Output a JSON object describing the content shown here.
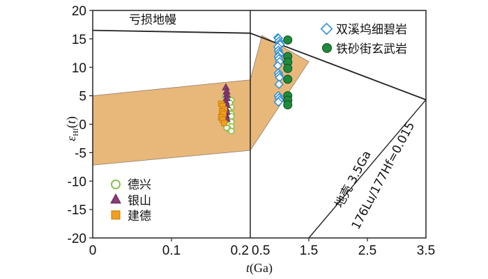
{
  "chart_data": {
    "type": "scatter",
    "xlabel": "t(Ga)",
    "ylabel": "εHf(t)",
    "ylim": [
      -20,
      20
    ],
    "yticks": [
      "20",
      "15",
      "10",
      "5",
      "0",
      "-5",
      "-10",
      "-15",
      "-20"
    ],
    "panels": [
      {
        "xlim": [
          0,
          0.2
        ],
        "xticks": [
          "0",
          "0.1",
          "0.2"
        ]
      },
      {
        "xlim": [
          0.5,
          3.5
        ],
        "xticks": [
          "0.5",
          "1.5",
          "2.5",
          "3.5"
        ]
      }
    ],
    "annotations": {
      "depleted_mantle": "亏损地幔",
      "crust_line_1": "地壳 3.5Ga",
      "crust_line_2": "176Lu/177Hf=0.015"
    },
    "colors": {
      "band": "#e8b87a",
      "shuangxiwu": "#2f8fd6",
      "tieshajie": "#1f8a3c",
      "dexing": "#7cbf3a",
      "yinshan": "#8b3a7a",
      "jiande": "#f0a020"
    },
    "series": [
      {
        "name": "双溪坞细碧岩",
        "marker": "diamond-open",
        "panel": 2,
        "x": [
          0.97,
          0.98,
          0.99,
          1.0,
          1.01,
          0.97,
          0.98,
          0.99,
          1.0,
          0.98,
          0.99,
          1.0,
          0.97,
          0.98,
          0.99,
          1.0,
          0.98,
          0.99,
          1.0,
          0.98,
          0.99
        ],
        "y": [
          15.2,
          15.1,
          14.6,
          14.2,
          14.0,
          13.6,
          13.0,
          12.6,
          12.3,
          11.9,
          11.5,
          11.0,
          10.3,
          9.0,
          8.6,
          8.2,
          5.0,
          4.6,
          4.2,
          3.9,
          7.0
        ]
      },
      {
        "name": "铁砂街玄武岩",
        "marker": "circle",
        "panel": 2,
        "x": [
          1.14,
          1.14,
          1.14,
          1.14,
          1.14,
          1.14,
          1.14,
          1.14
        ],
        "y": [
          14.8,
          11.9,
          10.9,
          9.8,
          7.9,
          5.0,
          4.2,
          3.4
        ]
      },
      {
        "name": "德兴",
        "marker": "circle-open",
        "panel": 1,
        "x": [
          0.168,
          0.172,
          0.176,
          0.168,
          0.172,
          0.176,
          0.168,
          0.172,
          0.176,
          0.168,
          0.172,
          0.176,
          0.168,
          0.172,
          0.176,
          0.172,
          0.176,
          0.172,
          0.176,
          0.174,
          0.17,
          0.166
        ],
        "y": [
          4.8,
          4.6,
          4.2,
          3.4,
          3.2,
          3.0,
          2.2,
          2.0,
          1.8,
          1.0,
          0.8,
          0.4,
          0.0,
          -0.2,
          -0.4,
          -0.8,
          -1.2,
          2.6,
          1.4,
          3.8,
          -0.6,
          2.8
        ]
      },
      {
        "name": "银山",
        "marker": "triangle",
        "panel": 1,
        "x": [
          0.169,
          0.17,
          0.17,
          0.17,
          0.169,
          0.17,
          0.169,
          0.17,
          0.169,
          0.17
        ],
        "y": [
          6.5,
          5.8,
          5.2,
          4.6,
          4.0,
          3.4,
          2.8,
          2.2,
          1.6,
          1.0
        ]
      },
      {
        "name": "建德",
        "marker": "square",
        "panel": 1,
        "x": [
          0.163,
          0.165,
          0.167,
          0.164,
          0.166,
          0.163,
          0.165,
          0.167
        ],
        "y": [
          3.6,
          3.2,
          2.6,
          2.2,
          1.8,
          1.2,
          0.8,
          0.2
        ]
      }
    ]
  }
}
